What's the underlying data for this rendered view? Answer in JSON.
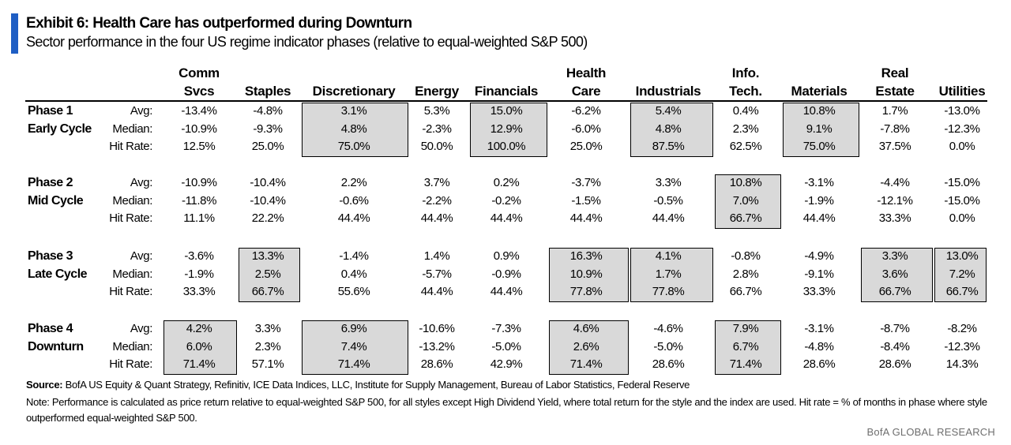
{
  "header": {
    "title": "Exhibit 6: Health Care has outperformed during Downturn",
    "subtitle": "Sector performance in the four US regime indicator phases (relative to equal-weighted S&P 500)",
    "accent_color": "#1f5ec4"
  },
  "chart_data": {
    "type": "table",
    "columns": [
      {
        "line1": "Comm",
        "line2": "Svcs"
      },
      {
        "line1": "",
        "line2": "Staples"
      },
      {
        "line1": "",
        "line2": "Discretionary"
      },
      {
        "line1": "",
        "line2": "Energy"
      },
      {
        "line1": "",
        "line2": "Financials"
      },
      {
        "line1": "Health",
        "line2": "Care"
      },
      {
        "line1": "",
        "line2": "Industrials"
      },
      {
        "line1": "Info.",
        "line2": "Tech."
      },
      {
        "line1": "",
        "line2": "Materials"
      },
      {
        "line1": "Real",
        "line2": "Estate"
      },
      {
        "line1": "",
        "line2": "Utilities"
      }
    ],
    "row_labels": [
      "Avg:",
      "Median:",
      "Hit Rate:"
    ],
    "highlight_color": "#d9d9d9",
    "phases": [
      {
        "name": "Phase 1",
        "subname": "Early Cycle",
        "rows": [
          [
            "-13.4%",
            "-4.8%",
            "3.1%",
            "5.3%",
            "15.0%",
            "-6.2%",
            "5.4%",
            "0.4%",
            "10.8%",
            "1.7%",
            "-13.0%"
          ],
          [
            "-10.9%",
            "-9.3%",
            "4.8%",
            "-2.3%",
            "12.9%",
            "-6.0%",
            "4.8%",
            "2.3%",
            "9.1%",
            "-7.8%",
            "-12.3%"
          ],
          [
            "12.5%",
            "25.0%",
            "75.0%",
            "50.0%",
            "100.0%",
            "25.0%",
            "87.5%",
            "62.5%",
            "75.0%",
            "37.5%",
            "0.0%"
          ]
        ],
        "highlighted": [
          2,
          4,
          6,
          8
        ]
      },
      {
        "name": "Phase 2",
        "subname": "Mid Cycle",
        "rows": [
          [
            "-10.9%",
            "-10.4%",
            "2.2%",
            "3.7%",
            "0.2%",
            "-3.7%",
            "3.3%",
            "10.8%",
            "-3.1%",
            "-4.4%",
            "-15.0%"
          ],
          [
            "-11.8%",
            "-10.4%",
            "-0.6%",
            "-2.2%",
            "-0.2%",
            "-1.5%",
            "-0.5%",
            "7.0%",
            "-1.9%",
            "-12.1%",
            "-15.0%"
          ],
          [
            "11.1%",
            "22.2%",
            "44.4%",
            "44.4%",
            "44.4%",
            "44.4%",
            "44.4%",
            "66.7%",
            "44.4%",
            "33.3%",
            "0.0%"
          ]
        ],
        "highlighted": [
          7
        ]
      },
      {
        "name": "Phase 3",
        "subname": "Late Cycle",
        "rows": [
          [
            "-3.6%",
            "13.3%",
            "-1.4%",
            "1.4%",
            "0.9%",
            "16.3%",
            "4.1%",
            "-0.8%",
            "-4.9%",
            "3.3%",
            "13.0%"
          ],
          [
            "-1.9%",
            "2.5%",
            "0.4%",
            "-5.7%",
            "-0.9%",
            "10.9%",
            "1.7%",
            "2.8%",
            "-9.1%",
            "3.6%",
            "7.2%"
          ],
          [
            "33.3%",
            "66.7%",
            "55.6%",
            "44.4%",
            "44.4%",
            "77.8%",
            "77.8%",
            "66.7%",
            "33.3%",
            "66.7%",
            "66.7%"
          ]
        ],
        "highlighted": [
          1,
          5,
          6,
          9,
          10
        ]
      },
      {
        "name": "Phase 4",
        "subname": "Downturn",
        "rows": [
          [
            "4.2%",
            "3.3%",
            "6.9%",
            "-10.6%",
            "-7.3%",
            "4.6%",
            "-4.6%",
            "7.9%",
            "-3.1%",
            "-8.7%",
            "-8.2%"
          ],
          [
            "6.0%",
            "2.3%",
            "7.4%",
            "-13.2%",
            "-5.0%",
            "2.6%",
            "-5.0%",
            "6.7%",
            "-4.8%",
            "-8.4%",
            "-12.3%"
          ],
          [
            "71.4%",
            "57.1%",
            "71.4%",
            "28.6%",
            "42.9%",
            "71.4%",
            "28.6%",
            "71.4%",
            "28.6%",
            "28.6%",
            "14.3%"
          ]
        ],
        "highlighted": [
          0,
          2,
          5,
          7
        ]
      }
    ]
  },
  "footer": {
    "source_label": "Source:",
    "source_text": " BofA US Equity & Quant Strategy, Refinitiv, ICE Data Indices, LLC, Institute for Supply Management, Bureau of Labor Statistics, Federal Reserve",
    "note": "Note: Performance is calculated as price return relative to equal-weighted S&P 500,  for all styles except High Dividend Yield, where total return for the style and the index are used. Hit rate = % of months in phase where style outperformed equal-weighted S&P 500.",
    "brand": "BofA GLOBAL RESEARCH"
  }
}
